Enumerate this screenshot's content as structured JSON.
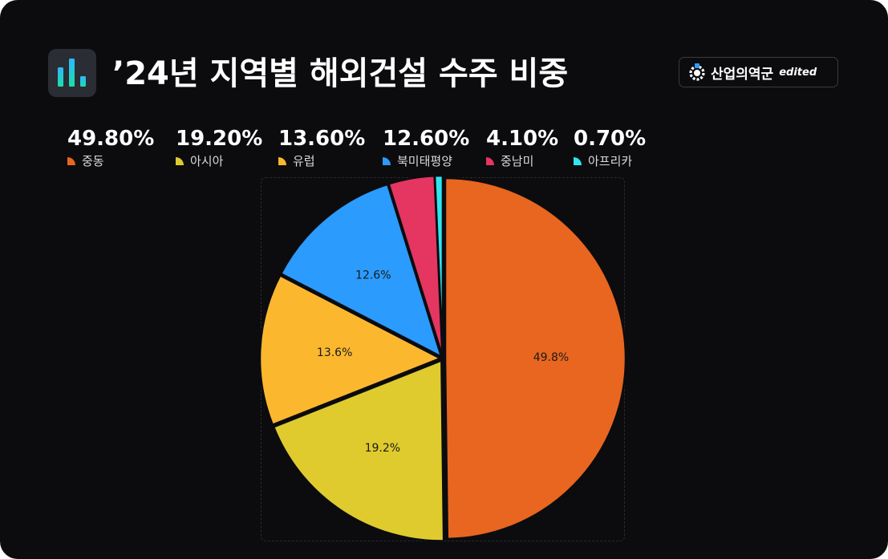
{
  "header": {
    "title": "’24년 지역별 해외건설 수주 비중",
    "app_icon": "bar-chart-icon"
  },
  "brand": {
    "name": "산업의역군",
    "tag": "edited",
    "logo_icon": "hardhat-gear-icon"
  },
  "legend": [
    {
      "pct": "49.80%",
      "name": "중동",
      "color": "#e8661f"
    },
    {
      "pct": "19.20%",
      "name": "아시아",
      "color": "#dfcb2e"
    },
    {
      "pct": "13.60%",
      "name": "유럽",
      "color": "#fbb82f"
    },
    {
      "pct": "12.60%",
      "name": "북미태평양",
      "color": "#2b9bfd"
    },
    {
      "pct": "4.10%",
      "name": "중남미",
      "color": "#e53561"
    },
    {
      "pct": "0.70%",
      "name": "아프리카",
      "color": "#2fe6f0"
    }
  ],
  "chart_data": {
    "type": "pie",
    "categories": [
      "중동",
      "아시아",
      "유럽",
      "북미태평양",
      "중남미",
      "아프리카"
    ],
    "values": [
      49.8,
      19.2,
      13.6,
      12.6,
      4.1,
      0.7
    ],
    "slice_labels": [
      "49.8%",
      "19.2%",
      "13.6%",
      "12.6%",
      "",
      ""
    ],
    "colors": [
      "#e8661f",
      "#dfcb2e",
      "#fbb82f",
      "#2b9bfd",
      "#e53561",
      "#2fe6f0"
    ],
    "start": "12 o'clock",
    "direction": "clockwise"
  }
}
